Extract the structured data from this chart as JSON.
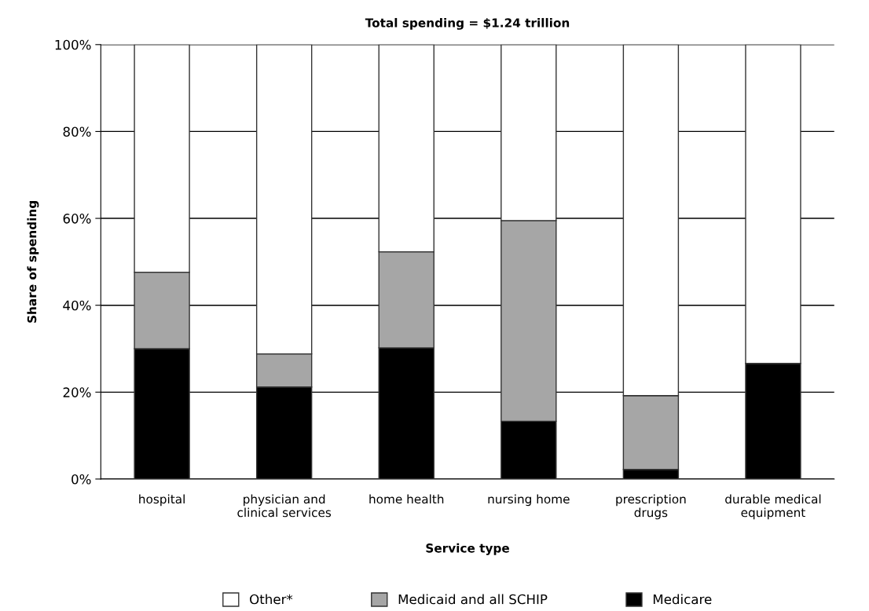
{
  "chart_data": {
    "type": "bar",
    "stacked": true,
    "title": "Total spending = $1.24 trillion",
    "xlabel": "Service type",
    "ylabel": "Share of spending",
    "categories": [
      "hospital",
      "physician and\nclinical services",
      "home health",
      "nursing home",
      "prescription\ndrugs",
      "durable medical\nequipment"
    ],
    "series": [
      {
        "name": "Medicare",
        "color": "#000000",
        "values": [
          30.0,
          21.2,
          30.2,
          13.3,
          2.2,
          26.6
        ]
      },
      {
        "name": "Medicaid and all SCHIP",
        "color": "#a6a6a6",
        "values": [
          17.6,
          7.6,
          22.1,
          46.2,
          17.0,
          0
        ]
      },
      {
        "name": "Other*",
        "color": "#ffffff",
        "values": [
          52.4,
          71.2,
          47.7,
          40.5,
          80.8,
          73.4
        ]
      }
    ],
    "ylim": [
      0,
      100
    ],
    "yticks": [
      {
        "value": 0,
        "label": "0%"
      },
      {
        "value": 20,
        "label": "20%"
      },
      {
        "value": 40,
        "label": "40%"
      },
      {
        "value": 60,
        "label": "60%"
      },
      {
        "value": 80,
        "label": "80%"
      },
      {
        "value": 100,
        "label": "100%"
      }
    ],
    "grid": "y",
    "legend": "bottom"
  }
}
